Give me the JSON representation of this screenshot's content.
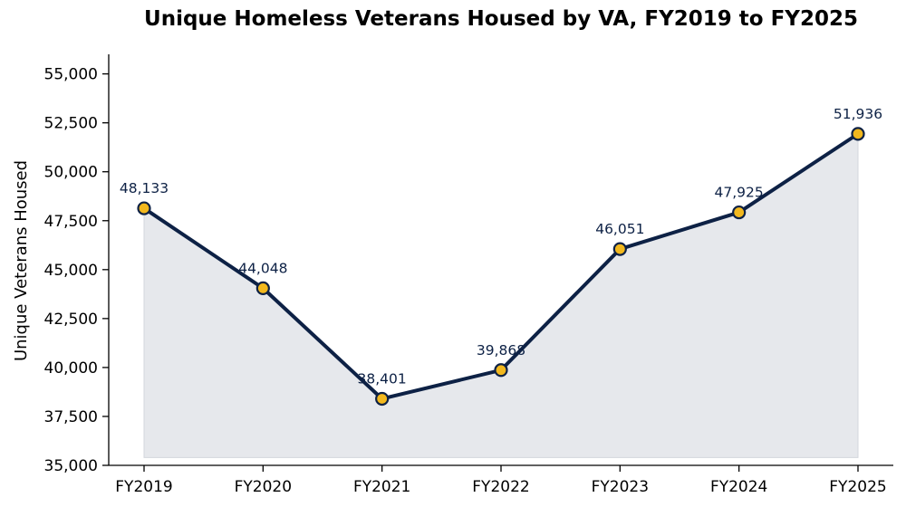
{
  "chart_data": {
    "type": "line",
    "title": "Unique Homeless Veterans Housed by VA, FY2019 to FY2025",
    "xlabel": "",
    "ylabel": "Unique Veterans Housed",
    "categories": [
      "FY2019",
      "FY2020",
      "FY2021",
      "FY2022",
      "FY2023",
      "FY2024",
      "FY2025"
    ],
    "series": [
      {
        "values": [
          48133,
          44048,
          38401,
          39868,
          46051,
          47925,
          51936
        ],
        "data_labels": [
          "48,133",
          "44,048",
          "38,401",
          "39,868",
          "46,051",
          "47,925",
          "51,936"
        ]
      }
    ],
    "ylim": [
      35000,
      56000
    ],
    "yticks": [
      35000,
      37500,
      40000,
      42500,
      45000,
      47500,
      50000,
      52500,
      55000
    ],
    "ytick_labels": [
      "35,000",
      "37,500",
      "40,000",
      "42,500",
      "45,000",
      "47,500",
      "50,000",
      "52,500",
      "55,000"
    ],
    "fill_floor": 35400,
    "grid": false,
    "legend": "none",
    "colors": {
      "line": "#0d2145",
      "marker_fill": "#f2b81e",
      "marker_edge": "#0d2145",
      "area_fill": "#e6e8ec",
      "data_label": "#0d2145"
    }
  }
}
